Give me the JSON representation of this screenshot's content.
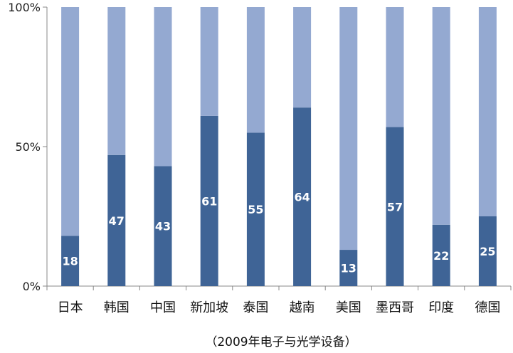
{
  "chart_data": {
    "type": "bar",
    "stacked": true,
    "percent_stacked": true,
    "categories": [
      "日本",
      "韩国",
      "中国",
      "新加坡",
      "泰国",
      "越南",
      "美国",
      "墨西哥",
      "印度",
      "德国"
    ],
    "series": [
      {
        "values": [
          18,
          47,
          43,
          61,
          55,
          64,
          13,
          57,
          22,
          25
        ],
        "color": "#3f6496",
        "data_labels": true
      },
      {
        "values": [
          82,
          53,
          57,
          39,
          45,
          36,
          87,
          43,
          78,
          75
        ],
        "color": "#94a9d1",
        "data_labels": false
      }
    ],
    "y_ticks": [
      "0%",
      "50%",
      "100%"
    ],
    "ylim": [
      0,
      100
    ],
    "caption": "（2009年电子与光学设备）",
    "grid": false,
    "legend": "none"
  }
}
